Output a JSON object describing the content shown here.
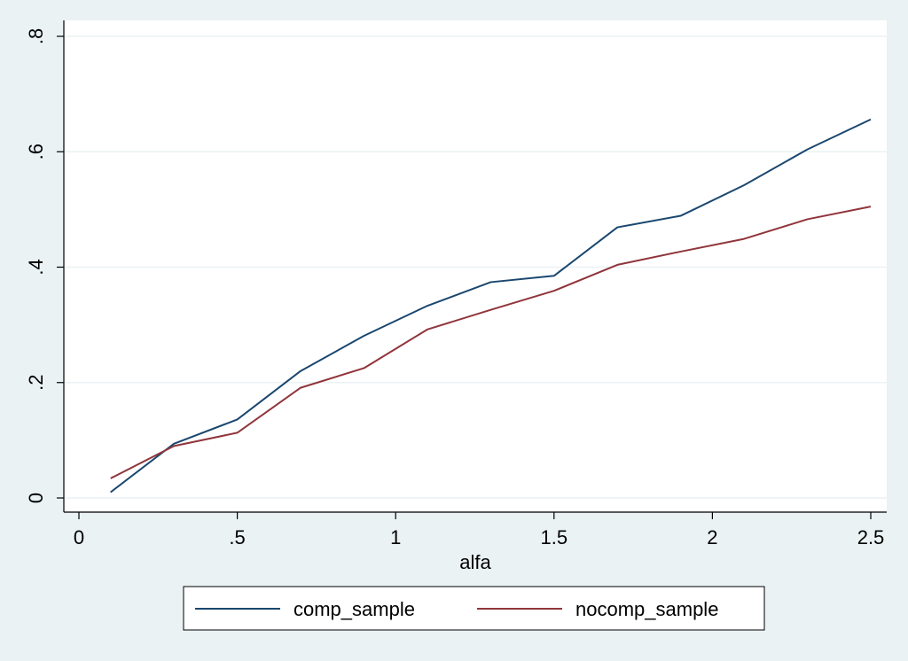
{
  "chart_data": {
    "type": "line",
    "xlabel": "alfa",
    "ylabel": "",
    "xlim": [
      0,
      2.5
    ],
    "ylim": [
      0,
      0.8
    ],
    "x_ticks": [
      0,
      0.5,
      1,
      1.5,
      2,
      2.5
    ],
    "x_tick_labels": [
      "0",
      ".5",
      "1",
      "1.5",
      "2",
      "2.5"
    ],
    "y_ticks": [
      0,
      0.2,
      0.4,
      0.6,
      0.8
    ],
    "y_tick_labels": [
      "0",
      ".2",
      ".4",
      ".6",
      ".8"
    ],
    "grid": true,
    "legend_position": "bottom",
    "x": [
      0.1,
      0.3,
      0.5,
      0.7,
      0.9,
      1.1,
      1.3,
      1.5,
      1.7,
      1.9,
      2.1,
      2.3,
      2.5
    ],
    "series": [
      {
        "name": "comp_sample",
        "color": "#1a476f",
        "values": [
          0.01,
          0.094,
          0.136,
          0.22,
          0.281,
          0.333,
          0.374,
          0.385,
          0.469,
          0.489,
          0.542,
          0.604,
          0.656
        ]
      },
      {
        "name": "nocomp_sample",
        "color": "#90353b",
        "values": [
          0.034,
          0.09,
          0.113,
          0.191,
          0.225,
          0.292,
          0.326,
          0.359,
          0.404,
          0.427,
          0.449,
          0.483,
          0.505
        ]
      }
    ]
  }
}
